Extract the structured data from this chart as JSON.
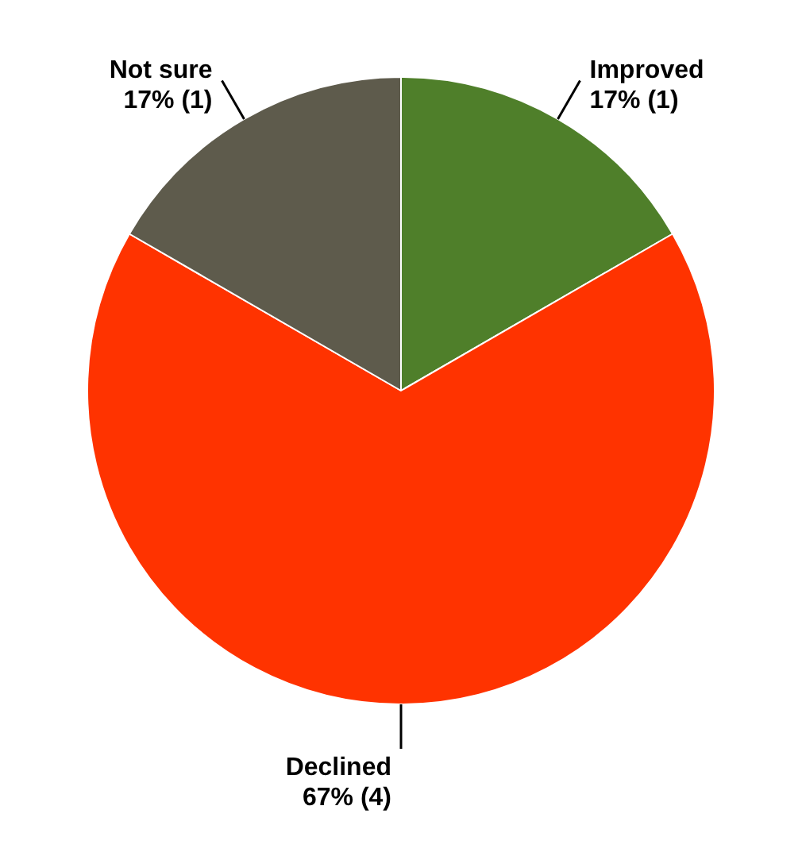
{
  "chart_data": {
    "type": "pie",
    "categories": [
      "Improved",
      "Declined",
      "Not sure"
    ],
    "values": [
      1,
      4,
      1
    ],
    "value_labels": [
      "17% (1)",
      "67% (4)",
      "17% (1)"
    ],
    "colors": [
      "#4f7f2a",
      "#ff3300",
      "#5e5b4c"
    ],
    "legend": false
  }
}
